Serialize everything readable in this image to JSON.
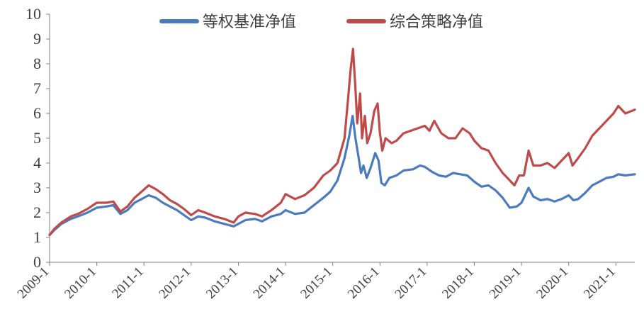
{
  "chart_data": {
    "type": "line",
    "title": "",
    "xlabel": "",
    "ylabel": "",
    "ylim": [
      0,
      10
    ],
    "yticks": [
      "0",
      "1",
      "2",
      "3",
      "4",
      "5",
      "6",
      "7",
      "8",
      "9",
      "10"
    ],
    "xticks": [
      "2009-1",
      "2010-1",
      "2011-1",
      "2012-1",
      "2013-1",
      "2014-1",
      "2015-1",
      "2016-1",
      "2017-1",
      "2018-1",
      "2019-1",
      "2020-1",
      "2021-1"
    ],
    "xrange": [
      2009.0,
      2021.4
    ],
    "grid": false,
    "legend_position": "top-center",
    "series": [
      {
        "name": "等权基准净值",
        "color": "#4a7bbf",
        "points": [
          [
            2009.0,
            1.1
          ],
          [
            2009.1,
            1.3
          ],
          [
            2009.25,
            1.55
          ],
          [
            2009.45,
            1.75
          ],
          [
            2009.6,
            1.85
          ],
          [
            2009.8,
            2.0
          ],
          [
            2010.0,
            2.2
          ],
          [
            2010.2,
            2.25
          ],
          [
            2010.35,
            2.3
          ],
          [
            2010.5,
            1.95
          ],
          [
            2010.65,
            2.1
          ],
          [
            2010.8,
            2.4
          ],
          [
            2010.95,
            2.55
          ],
          [
            2011.1,
            2.7
          ],
          [
            2011.25,
            2.6
          ],
          [
            2011.4,
            2.4
          ],
          [
            2011.55,
            2.25
          ],
          [
            2011.7,
            2.1
          ],
          [
            2011.85,
            1.9
          ],
          [
            2012.0,
            1.7
          ],
          [
            2012.15,
            1.85
          ],
          [
            2012.3,
            1.8
          ],
          [
            2012.5,
            1.65
          ],
          [
            2012.7,
            1.55
          ],
          [
            2012.9,
            1.45
          ],
          [
            2013.0,
            1.55
          ],
          [
            2013.15,
            1.7
          ],
          [
            2013.35,
            1.75
          ],
          [
            2013.5,
            1.65
          ],
          [
            2013.7,
            1.85
          ],
          [
            2013.9,
            1.95
          ],
          [
            2014.0,
            2.1
          ],
          [
            2014.2,
            1.95
          ],
          [
            2014.4,
            2.0
          ],
          [
            2014.6,
            2.3
          ],
          [
            2014.8,
            2.6
          ],
          [
            2014.95,
            2.85
          ],
          [
            2015.1,
            3.3
          ],
          [
            2015.25,
            4.2
          ],
          [
            2015.35,
            5.1
          ],
          [
            2015.42,
            5.9
          ],
          [
            2015.48,
            5.0
          ],
          [
            2015.55,
            4.2
          ],
          [
            2015.6,
            3.6
          ],
          [
            2015.65,
            3.9
          ],
          [
            2015.72,
            3.4
          ],
          [
            2015.8,
            3.8
          ],
          [
            2015.9,
            4.4
          ],
          [
            2015.97,
            4.1
          ],
          [
            2016.03,
            3.2
          ],
          [
            2016.1,
            3.1
          ],
          [
            2016.2,
            3.4
          ],
          [
            2016.35,
            3.5
          ],
          [
            2016.5,
            3.7
          ],
          [
            2016.7,
            3.75
          ],
          [
            2016.85,
            3.9
          ],
          [
            2016.95,
            3.85
          ],
          [
            2017.1,
            3.65
          ],
          [
            2017.25,
            3.5
          ],
          [
            2017.4,
            3.45
          ],
          [
            2017.55,
            3.6
          ],
          [
            2017.7,
            3.55
          ],
          [
            2017.85,
            3.5
          ],
          [
            2018.0,
            3.25
          ],
          [
            2018.15,
            3.05
          ],
          [
            2018.3,
            3.1
          ],
          [
            2018.45,
            2.9
          ],
          [
            2018.6,
            2.6
          ],
          [
            2018.75,
            2.2
          ],
          [
            2018.9,
            2.25
          ],
          [
            2019.0,
            2.4
          ],
          [
            2019.15,
            3.0
          ],
          [
            2019.25,
            2.65
          ],
          [
            2019.4,
            2.5
          ],
          [
            2019.55,
            2.55
          ],
          [
            2019.7,
            2.45
          ],
          [
            2019.85,
            2.55
          ],
          [
            2020.0,
            2.7
          ],
          [
            2020.1,
            2.5
          ],
          [
            2020.2,
            2.55
          ],
          [
            2020.35,
            2.8
          ],
          [
            2020.5,
            3.1
          ],
          [
            2020.65,
            3.25
          ],
          [
            2020.8,
            3.4
          ],
          [
            2020.95,
            3.45
          ],
          [
            2021.05,
            3.55
          ],
          [
            2021.2,
            3.5
          ],
          [
            2021.4,
            3.55
          ]
        ]
      },
      {
        "name": "综合策略净值",
        "color": "#c04a4a",
        "points": [
          [
            2009.0,
            1.1
          ],
          [
            2009.1,
            1.35
          ],
          [
            2009.25,
            1.6
          ],
          [
            2009.45,
            1.85
          ],
          [
            2009.6,
            1.95
          ],
          [
            2009.8,
            2.15
          ],
          [
            2010.0,
            2.4
          ],
          [
            2010.2,
            2.4
          ],
          [
            2010.35,
            2.45
          ],
          [
            2010.5,
            2.05
          ],
          [
            2010.65,
            2.25
          ],
          [
            2010.8,
            2.6
          ],
          [
            2010.95,
            2.85
          ],
          [
            2011.1,
            3.1
          ],
          [
            2011.25,
            2.95
          ],
          [
            2011.4,
            2.75
          ],
          [
            2011.55,
            2.5
          ],
          [
            2011.7,
            2.35
          ],
          [
            2011.85,
            2.15
          ],
          [
            2012.0,
            1.9
          ],
          [
            2012.15,
            2.1
          ],
          [
            2012.3,
            2.0
          ],
          [
            2012.5,
            1.85
          ],
          [
            2012.7,
            1.75
          ],
          [
            2012.9,
            1.6
          ],
          [
            2013.0,
            1.85
          ],
          [
            2013.15,
            2.0
          ],
          [
            2013.35,
            1.95
          ],
          [
            2013.5,
            1.85
          ],
          [
            2013.7,
            2.1
          ],
          [
            2013.9,
            2.4
          ],
          [
            2014.0,
            2.75
          ],
          [
            2014.2,
            2.55
          ],
          [
            2014.4,
            2.7
          ],
          [
            2014.6,
            3.0
          ],
          [
            2014.8,
            3.5
          ],
          [
            2014.95,
            3.7
          ],
          [
            2015.1,
            4.0
          ],
          [
            2015.25,
            5.0
          ],
          [
            2015.32,
            6.5
          ],
          [
            2015.38,
            7.8
          ],
          [
            2015.43,
            8.6
          ],
          [
            2015.48,
            7.0
          ],
          [
            2015.52,
            5.6
          ],
          [
            2015.58,
            6.8
          ],
          [
            2015.62,
            5.0
          ],
          [
            2015.68,
            5.9
          ],
          [
            2015.73,
            4.8
          ],
          [
            2015.8,
            5.2
          ],
          [
            2015.88,
            6.1
          ],
          [
            2015.95,
            6.4
          ],
          [
            2016.0,
            5.2
          ],
          [
            2016.05,
            4.5
          ],
          [
            2016.12,
            5.0
          ],
          [
            2016.25,
            4.8
          ],
          [
            2016.35,
            4.9
          ],
          [
            2016.5,
            5.2
          ],
          [
            2016.65,
            5.3
          ],
          [
            2016.8,
            5.4
          ],
          [
            2016.95,
            5.5
          ],
          [
            2017.05,
            5.3
          ],
          [
            2017.15,
            5.7
          ],
          [
            2017.3,
            5.2
          ],
          [
            2017.45,
            5.0
          ],
          [
            2017.6,
            5.0
          ],
          [
            2017.75,
            5.4
          ],
          [
            2017.9,
            5.2
          ],
          [
            2018.0,
            4.9
          ],
          [
            2018.15,
            4.6
          ],
          [
            2018.3,
            4.5
          ],
          [
            2018.45,
            4.0
          ],
          [
            2018.6,
            3.6
          ],
          [
            2018.75,
            3.3
          ],
          [
            2018.85,
            3.1
          ],
          [
            2018.95,
            3.5
          ],
          [
            2019.05,
            3.5
          ],
          [
            2019.15,
            4.5
          ],
          [
            2019.25,
            3.9
          ],
          [
            2019.4,
            3.9
          ],
          [
            2019.55,
            4.0
          ],
          [
            2019.7,
            3.8
          ],
          [
            2019.85,
            4.1
          ],
          [
            2020.0,
            4.4
          ],
          [
            2020.08,
            3.9
          ],
          [
            2020.2,
            4.2
          ],
          [
            2020.35,
            4.6
          ],
          [
            2020.5,
            5.1
          ],
          [
            2020.65,
            5.4
          ],
          [
            2020.8,
            5.7
          ],
          [
            2020.95,
            6.0
          ],
          [
            2021.05,
            6.3
          ],
          [
            2021.2,
            6.0
          ],
          [
            2021.4,
            6.15
          ]
        ]
      }
    ]
  }
}
